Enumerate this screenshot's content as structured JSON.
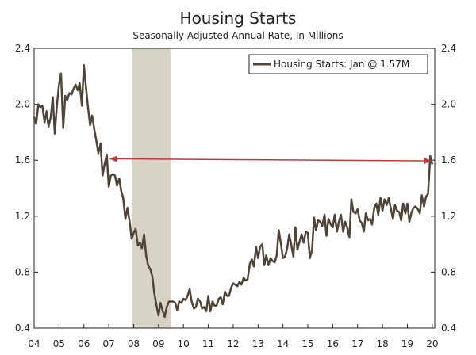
{
  "chart_data": {
    "type": "line",
    "title": "Housing Starts",
    "subtitle": "Seasonally Adjusted Annual Rate, In Millions",
    "xlabel": "",
    "ylabel": "",
    "x_tick_labels": [
      "04",
      "05",
      "06",
      "07",
      "08",
      "09",
      "10",
      "11",
      "12",
      "13",
      "14",
      "15",
      "16",
      "17",
      "18",
      "19",
      "20"
    ],
    "x_range": [
      2004.0,
      2020.1
    ],
    "ylim": [
      0.4,
      2.4
    ],
    "y_ticks": [
      0.4,
      0.8,
      1.2,
      1.6,
      2.0,
      2.4
    ],
    "y_tick_labels": [
      "0.4",
      "0.8",
      "1.2",
      "1.6",
      "2.0",
      "2.4"
    ],
    "recession": {
      "start": 2007.92,
      "end": 2009.5,
      "color": "#d6d2c4"
    },
    "reference_line": {
      "from_x": 2007.05,
      "to_x": 2019.95,
      "y_start": 1.61,
      "y_end": 1.595,
      "color": "#c0393b"
    },
    "legend": {
      "label": "Housing Starts: Jan @ 1.57M",
      "placement": "top-right"
    },
    "series": [
      {
        "name": "Housing Starts",
        "color": "#4f4438",
        "points": [
          [
            2004.0,
            1.91
          ],
          [
            2004.08,
            1.86
          ],
          [
            2004.17,
            2.0
          ],
          [
            2004.25,
            1.98
          ],
          [
            2004.33,
            1.99
          ],
          [
            2004.42,
            1.87
          ],
          [
            2004.5,
            1.95
          ],
          [
            2004.58,
            1.84
          ],
          [
            2004.67,
            1.91
          ],
          [
            2004.75,
            2.05
          ],
          [
            2004.83,
            1.79
          ],
          [
            2004.92,
            2.0
          ],
          [
            2005.0,
            2.14
          ],
          [
            2005.08,
            2.22
          ],
          [
            2005.17,
            1.83
          ],
          [
            2005.25,
            2.06
          ],
          [
            2005.33,
            2.03
          ],
          [
            2005.42,
            2.08
          ],
          [
            2005.5,
            2.07
          ],
          [
            2005.58,
            2.11
          ],
          [
            2005.67,
            2.14
          ],
          [
            2005.75,
            2.1
          ],
          [
            2005.83,
            2.15
          ],
          [
            2005.92,
            1.99
          ],
          [
            2006.0,
            2.28
          ],
          [
            2006.08,
            2.13
          ],
          [
            2006.17,
            1.97
          ],
          [
            2006.25,
            1.85
          ],
          [
            2006.33,
            1.92
          ],
          [
            2006.42,
            1.82
          ],
          [
            2006.5,
            1.74
          ],
          [
            2006.58,
            1.65
          ],
          [
            2006.67,
            1.72
          ],
          [
            2006.75,
            1.49
          ],
          [
            2006.83,
            1.57
          ],
          [
            2006.92,
            1.64
          ],
          [
            2007.0,
            1.41
          ],
          [
            2007.08,
            1.49
          ],
          [
            2007.17,
            1.5
          ],
          [
            2007.25,
            1.49
          ],
          [
            2007.33,
            1.42
          ],
          [
            2007.42,
            1.47
          ],
          [
            2007.5,
            1.38
          ],
          [
            2007.58,
            1.33
          ],
          [
            2007.67,
            1.18
          ],
          [
            2007.75,
            1.26
          ],
          [
            2007.83,
            1.17
          ],
          [
            2007.92,
            1.04
          ],
          [
            2008.0,
            1.08
          ],
          [
            2008.08,
            1.11
          ],
          [
            2008.17,
            0.99
          ],
          [
            2008.25,
            1.01
          ],
          [
            2008.33,
            0.97
          ],
          [
            2008.42,
            1.07
          ],
          [
            2008.5,
            0.92
          ],
          [
            2008.58,
            0.85
          ],
          [
            2008.67,
            0.82
          ],
          [
            2008.75,
            0.77
          ],
          [
            2008.83,
            0.65
          ],
          [
            2008.92,
            0.56
          ],
          [
            2009.0,
            0.49
          ],
          [
            2009.08,
            0.58
          ],
          [
            2009.17,
            0.52
          ],
          [
            2009.25,
            0.48
          ],
          [
            2009.33,
            0.55
          ],
          [
            2009.42,
            0.59
          ],
          [
            2009.5,
            0.59
          ],
          [
            2009.58,
            0.59
          ],
          [
            2009.67,
            0.58
          ],
          [
            2009.75,
            0.53
          ],
          [
            2009.83,
            0.59
          ],
          [
            2009.92,
            0.58
          ],
          [
            2010.0,
            0.61
          ],
          [
            2010.08,
            0.6
          ],
          [
            2010.17,
            0.63
          ],
          [
            2010.25,
            0.68
          ],
          [
            2010.33,
            0.59
          ],
          [
            2010.42,
            0.54
          ],
          [
            2010.5,
            0.55
          ],
          [
            2010.58,
            0.61
          ],
          [
            2010.67,
            0.59
          ],
          [
            2010.75,
            0.54
          ],
          [
            2010.83,
            0.55
          ],
          [
            2010.92,
            0.52
          ],
          [
            2011.0,
            0.63
          ],
          [
            2011.08,
            0.52
          ],
          [
            2011.17,
            0.59
          ],
          [
            2011.25,
            0.56
          ],
          [
            2011.33,
            0.56
          ],
          [
            2011.42,
            0.61
          ],
          [
            2011.5,
            0.62
          ],
          [
            2011.58,
            0.57
          ],
          [
            2011.67,
            0.66
          ],
          [
            2011.75,
            0.63
          ],
          [
            2011.83,
            0.63
          ],
          [
            2011.92,
            0.69
          ],
          [
            2012.0,
            0.72
          ],
          [
            2012.08,
            0.71
          ],
          [
            2012.17,
            0.7
          ],
          [
            2012.25,
            0.73
          ],
          [
            2012.33,
            0.71
          ],
          [
            2012.42,
            0.76
          ],
          [
            2012.5,
            0.74
          ],
          [
            2012.58,
            0.75
          ],
          [
            2012.67,
            0.86
          ],
          [
            2012.75,
            0.89
          ],
          [
            2012.83,
            0.84
          ],
          [
            2012.92,
            0.98
          ],
          [
            2013.0,
            0.9
          ],
          [
            2013.08,
            0.98
          ],
          [
            2013.17,
            1.0
          ],
          [
            2013.25,
            0.85
          ],
          [
            2013.33,
            0.92
          ],
          [
            2013.42,
            0.85
          ],
          [
            2013.5,
            0.9
          ],
          [
            2013.58,
            0.88
          ],
          [
            2013.67,
            0.87
          ],
          [
            2013.75,
            0.92
          ],
          [
            2013.83,
            1.1
          ],
          [
            2013.92,
            1.0
          ],
          [
            2014.0,
            0.9
          ],
          [
            2014.08,
            0.91
          ],
          [
            2014.17,
            0.97
          ],
          [
            2014.25,
            1.07
          ],
          [
            2014.33,
            1.0
          ],
          [
            2014.42,
            0.91
          ],
          [
            2014.5,
            1.12
          ],
          [
            2014.58,
            0.96
          ],
          [
            2014.67,
            1.02
          ],
          [
            2014.75,
            1.07
          ],
          [
            2014.83,
            1.01
          ],
          [
            2014.92,
            1.09
          ],
          [
            2015.0,
            1.08
          ],
          [
            2015.08,
            0.9
          ],
          [
            2015.17,
            0.96
          ],
          [
            2015.25,
            1.19
          ],
          [
            2015.33,
            1.1
          ],
          [
            2015.42,
            1.17
          ],
          [
            2015.5,
            1.16
          ],
          [
            2015.58,
            1.13
          ],
          [
            2015.67,
            1.21
          ],
          [
            2015.75,
            1.06
          ],
          [
            2015.83,
            1.18
          ],
          [
            2015.92,
            1.14
          ],
          [
            2016.0,
            1.12
          ],
          [
            2016.08,
            1.21
          ],
          [
            2016.17,
            1.09
          ],
          [
            2016.25,
            1.16
          ],
          [
            2016.33,
            1.21
          ],
          [
            2016.42,
            1.09
          ],
          [
            2016.5,
            1.16
          ],
          [
            2016.58,
            1.12
          ],
          [
            2016.67,
            1.05
          ],
          [
            2016.75,
            1.32
          ],
          [
            2016.83,
            1.23
          ],
          [
            2016.92,
            1.22
          ],
          [
            2017.0,
            1.25
          ],
          [
            2017.08,
            1.17
          ],
          [
            2017.17,
            1.15
          ],
          [
            2017.25,
            1.09
          ],
          [
            2017.33,
            1.22
          ],
          [
            2017.42,
            1.17
          ],
          [
            2017.5,
            1.18
          ],
          [
            2017.58,
            1.14
          ],
          [
            2017.67,
            1.26
          ],
          [
            2017.75,
            1.29
          ],
          [
            2017.83,
            1.21
          ],
          [
            2017.92,
            1.33
          ],
          [
            2018.0,
            1.24
          ],
          [
            2018.08,
            1.32
          ],
          [
            2018.17,
            1.28
          ],
          [
            2018.25,
            1.33
          ],
          [
            2018.33,
            1.26
          ],
          [
            2018.42,
            1.18
          ],
          [
            2018.5,
            1.28
          ],
          [
            2018.58,
            1.24
          ],
          [
            2018.67,
            1.23
          ],
          [
            2018.75,
            1.17
          ],
          [
            2018.83,
            1.29
          ],
          [
            2018.92,
            1.22
          ],
          [
            2019.0,
            1.29
          ],
          [
            2019.08,
            1.16
          ],
          [
            2019.17,
            1.23
          ],
          [
            2019.25,
            1.26
          ],
          [
            2019.33,
            1.27
          ],
          [
            2019.42,
            1.25
          ],
          [
            2019.5,
            1.22
          ],
          [
            2019.58,
            1.35
          ],
          [
            2019.67,
            1.27
          ],
          [
            2019.75,
            1.34
          ],
          [
            2019.83,
            1.36
          ],
          [
            2019.92,
            1.63
          ],
          [
            2020.0,
            1.57
          ]
        ]
      }
    ]
  }
}
